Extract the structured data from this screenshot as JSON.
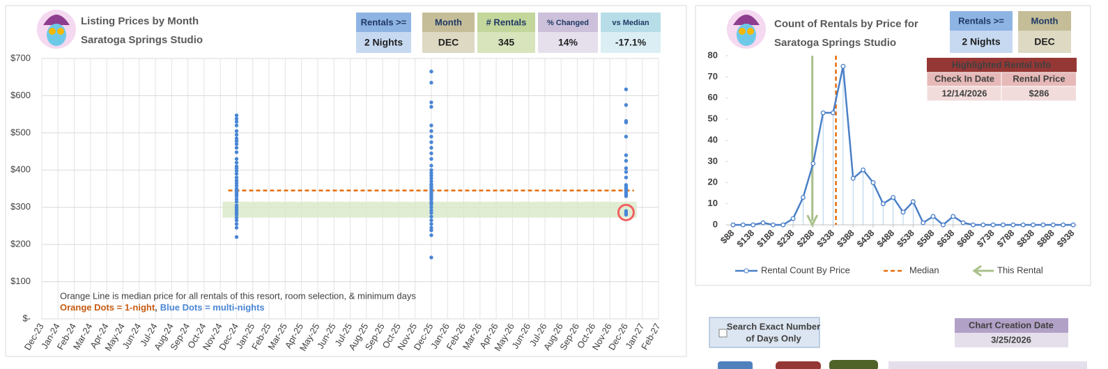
{
  "chart_data": [
    {
      "type": "scatter",
      "title": "Listing Prices by Month",
      "subtitle": "Saratoga Springs Studio",
      "info": {
        "labels": [
          "Rentals >=",
          "Month",
          "# Rentals",
          "% Changed",
          "vs Median"
        ],
        "values": [
          "2 Nights",
          "DEC",
          "345",
          "14%",
          "-17.1%"
        ]
      },
      "categories": [
        "Dec-23",
        "Jan-24",
        "Feb-24",
        "Mar-24",
        "Apr-24",
        "May-24",
        "Jun-24",
        "Jul-24",
        "Aug-24",
        "Sep-24",
        "Oct-24",
        "Nov-24",
        "Dec-24",
        "Jan-25",
        "Feb-25",
        "Mar-25",
        "Apr-25",
        "May-25",
        "Jun-25",
        "Jul-25",
        "Aug-25",
        "Sep-25",
        "Oct-25",
        "Nov-25",
        "Dec-25",
        "Jan-26",
        "Feb-26",
        "Mar-26",
        "Apr-26",
        "May-26",
        "Jun-26",
        "Jul-26",
        "Aug-26",
        "Sep-26",
        "Oct-26",
        "Nov-26",
        "Dec-26",
        "Jan-27",
        "Feb-27"
      ],
      "ylim": [
        0,
        700
      ],
      "yticks": [
        {
          "value": 0,
          "label": "$-"
        },
        {
          "value": 100,
          "label": "$100"
        },
        {
          "value": 200,
          "label": "$200"
        },
        {
          "value": 300,
          "label": "$300"
        },
        {
          "value": 400,
          "label": "$400"
        },
        {
          "value": 500,
          "label": "$500"
        },
        {
          "value": 600,
          "label": "$600"
        },
        {
          "value": 700,
          "label": "$700"
        }
      ],
      "grid": true,
      "series": [
        {
          "color": "#4a86d4",
          "x": [
            "Dec-24",
            "Dec-24",
            "Dec-24",
            "Dec-24",
            "Dec-24",
            "Dec-24",
            "Dec-24",
            "Dec-24",
            "Dec-24",
            "Dec-24",
            "Dec-24",
            "Dec-24",
            "Dec-24",
            "Dec-24",
            "Dec-24",
            "Dec-24",
            "Dec-24",
            "Dec-24",
            "Dec-24",
            "Dec-24",
            "Dec-24",
            "Dec-24",
            "Dec-24",
            "Dec-24",
            "Dec-24",
            "Dec-24",
            "Dec-24",
            "Dec-24",
            "Dec-24",
            "Dec-24",
            "Dec-24",
            "Dec-24",
            "Dec-24",
            "Dec-24",
            "Dec-24",
            "Dec-24",
            "Dec-24",
            "Dec-24",
            "Dec-24",
            "Dec-24",
            "Dec-25",
            "Dec-25",
            "Dec-25",
            "Dec-25",
            "Dec-25",
            "Dec-25",
            "Dec-25",
            "Dec-25",
            "Dec-25",
            "Dec-25",
            "Dec-25",
            "Dec-25",
            "Dec-25",
            "Dec-25",
            "Dec-25",
            "Dec-25",
            "Dec-25",
            "Dec-25",
            "Dec-25",
            "Dec-25",
            "Dec-25",
            "Dec-25",
            "Dec-25",
            "Dec-25",
            "Dec-25",
            "Dec-25",
            "Dec-25",
            "Dec-25",
            "Dec-25",
            "Dec-25",
            "Dec-25",
            "Dec-25",
            "Dec-25",
            "Dec-25",
            "Dec-25",
            "Dec-25",
            "Dec-25",
            "Dec-25",
            "Dec-25",
            "Dec-25",
            "Dec-26",
            "Dec-26",
            "Dec-26",
            "Dec-26",
            "Dec-26",
            "Dec-26",
            "Dec-26",
            "Dec-26",
            "Dec-26",
            "Dec-26",
            "Dec-26",
            "Dec-26",
            "Dec-26",
            "Dec-26",
            "Dec-26",
            "Dec-26",
            "Dec-26",
            "Dec-26",
            "Dec-26",
            "Dec-26"
          ],
          "values": [
            547,
            538,
            530,
            520,
            505,
            495,
            485,
            478,
            470,
            460,
            448,
            430,
            420,
            410,
            405,
            398,
            390,
            380,
            372,
            365,
            358,
            350,
            345,
            340,
            335,
            330,
            322,
            315,
            305,
            300,
            298,
            295,
            290,
            285,
            280,
            272,
            265,
            255,
            245,
            220,
            665,
            635,
            582,
            570,
            520,
            505,
            490,
            475,
            460,
            445,
            430,
            412,
            400,
            392,
            385,
            378,
            370,
            362,
            360,
            355,
            350,
            345,
            340,
            335,
            330,
            328,
            322,
            315,
            310,
            308,
            300,
            292,
            285,
            275,
            265,
            255,
            245,
            238,
            225,
            165,
            617,
            575,
            532,
            528,
            490,
            440,
            425,
            405,
            395,
            380,
            360,
            355,
            350,
            345,
            340,
            335,
            330,
            290,
            285,
            280
          ]
        }
      ],
      "median": {
        "value": 345,
        "color": "#e46c0a",
        "x": [
          "Dec-24",
          "Jan-27"
        ]
      },
      "band": {
        "values": [
          272,
          315
        ],
        "color": "#d8e9c8",
        "x": [
          "Dec-24",
          "Jan-27"
        ]
      },
      "highlight": {
        "x": "Dec-26",
        "value": 286,
        "color": "#f06060"
      },
      "annotations": [
        "Orange Line is median price for all rentals of this resort, room selection, & minimum days",
        "Orange Dots = 1-night",
        ",",
        "Blue Dots = multi-nights"
      ]
    },
    {
      "type": "line",
      "title": "Count of Rentals by Price for",
      "subtitle": "Saratoga Springs Studio",
      "info": {
        "labels": [
          "Rentals >=",
          "Month"
        ],
        "values": [
          "2 Nights",
          "DEC"
        ]
      },
      "highlight_table": {
        "title": "Highlighted Rental Info",
        "headers": [
          "Check In Date",
          "Rental Price"
        ],
        "values": [
          "12/14/2026",
          "$286"
        ]
      },
      "x": [
        88,
        113,
        138,
        163,
        188,
        213,
        238,
        263,
        288,
        313,
        338,
        363,
        388,
        413,
        438,
        463,
        488,
        513,
        538,
        563,
        588,
        613,
        638,
        663,
        688,
        713,
        738,
        763,
        788,
        813,
        838,
        863,
        888,
        913,
        938
      ],
      "xlim": [
        88,
        938
      ],
      "xticks": [
        {
          "value": 88,
          "label": "$88"
        },
        {
          "value": 138,
          "label": "$138"
        },
        {
          "value": 188,
          "label": "$188"
        },
        {
          "value": 238,
          "label": "$238"
        },
        {
          "value": 288,
          "label": "$288"
        },
        {
          "value": 338,
          "label": "$338"
        },
        {
          "value": 388,
          "label": "$388"
        },
        {
          "value": 438,
          "label": "$438"
        },
        {
          "value": 488,
          "label": "$488"
        },
        {
          "value": 538,
          "label": "$538"
        },
        {
          "value": 588,
          "label": "$588"
        },
        {
          "value": 638,
          "label": "$638"
        },
        {
          "value": 688,
          "label": "$688"
        },
        {
          "value": 738,
          "label": "$738"
        },
        {
          "value": 788,
          "label": "$788"
        },
        {
          "value": 838,
          "label": "$838"
        },
        {
          "value": 888,
          "label": "$888"
        },
        {
          "value": 938,
          "label": "$938"
        }
      ],
      "ylim": [
        0,
        80
      ],
      "yticks": [
        0,
        10,
        20,
        30,
        40,
        50,
        60,
        70,
        80
      ],
      "series": [
        {
          "name": "Rental Count By Price",
          "color": "#4a7fc7",
          "values": [
            0,
            0,
            0,
            1,
            0,
            0,
            3,
            13,
            29,
            53,
            53,
            75,
            22,
            26,
            20,
            10,
            13,
            6,
            11,
            1,
            4,
            0,
            4,
            1,
            0,
            0,
            0,
            0,
            0,
            0,
            0,
            0,
            0,
            0,
            0
          ]
        }
      ],
      "median": {
        "name": "Median",
        "value": 345,
        "color": "#e46c0a"
      },
      "highlight": {
        "name": "This Rental",
        "value": 286,
        "color": "#a9c08a"
      }
    }
  ],
  "controls": {
    "checkbox_label": [
      "Search Exact Number",
      "of Days Only"
    ],
    "creation_date_label": "Chart Creation Date",
    "creation_date": "3/25/2026"
  }
}
